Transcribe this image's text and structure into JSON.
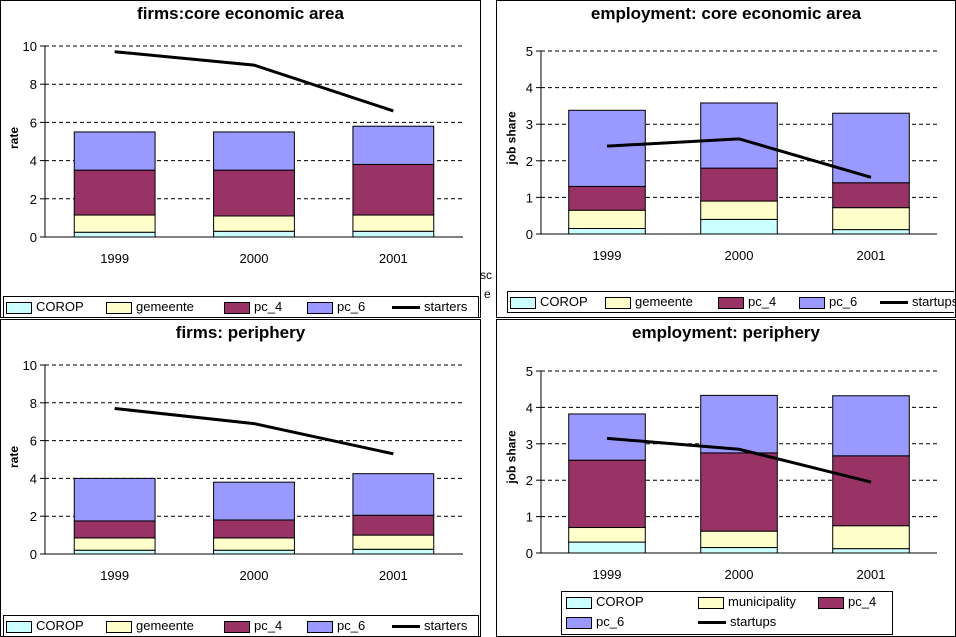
{
  "colors": {
    "corop": "#ccffff",
    "gemeente": "#ffffcc",
    "pc_4": "#993366",
    "pc_6": "#9999ff",
    "line": "#000000",
    "grid": "#000000"
  },
  "stray_text": {
    "a": "sc",
    "b": "e"
  },
  "chart_data": [
    {
      "type": "bar",
      "stacked": true,
      "title": "firms:core economic area",
      "ylabel": "rate",
      "ylim": [
        0,
        10
      ],
      "yticks": [
        "0",
        "2",
        "4",
        "6",
        "8",
        "10"
      ],
      "categories": [
        "1999",
        "2000",
        "2001"
      ],
      "series": [
        {
          "name": "COROP",
          "values": [
            0.25,
            0.3,
            0.3
          ]
        },
        {
          "name": "gemeente",
          "values": [
            0.9,
            0.8,
            0.85
          ]
        },
        {
          "name": "pc_4",
          "values": [
            2.35,
            2.4,
            2.65
          ]
        },
        {
          "name": "pc_6",
          "values": [
            2.0,
            2.0,
            2.0
          ]
        }
      ],
      "line": {
        "name": "starters",
        "values": [
          9.7,
          9.0,
          6.6
        ]
      },
      "grid": "dashed-horizontal",
      "legend": "bottom"
    },
    {
      "type": "bar",
      "stacked": true,
      "title": "employment: core economic area",
      "ylabel": "job share",
      "ylim": [
        0,
        5
      ],
      "yticks": [
        "0",
        "1",
        "2",
        "3",
        "4",
        "5"
      ],
      "categories": [
        "1999",
        "2000",
        "2001"
      ],
      "series": [
        {
          "name": "COROP",
          "values": [
            0.15,
            0.4,
            0.12
          ]
        },
        {
          "name": "gemeente",
          "values": [
            0.5,
            0.5,
            0.6
          ]
        },
        {
          "name": "pc_4",
          "values": [
            0.65,
            0.9,
            0.68
          ]
        },
        {
          "name": "pc_6",
          "values": [
            2.08,
            1.78,
            1.9
          ]
        }
      ],
      "line": {
        "name": "startups",
        "values": [
          2.4,
          2.6,
          1.55
        ]
      },
      "grid": "dashed-horizontal",
      "legend": "bottom"
    },
    {
      "type": "bar",
      "stacked": true,
      "title": "firms: periphery",
      "ylabel": "rate",
      "ylim": [
        0,
        10
      ],
      "yticks": [
        "0",
        "2",
        "4",
        "6",
        "8",
        "10"
      ],
      "categories": [
        "1999",
        "2000",
        "2001"
      ],
      "series": [
        {
          "name": "COROP",
          "values": [
            0.2,
            0.2,
            0.25
          ]
        },
        {
          "name": "gemeente",
          "values": [
            0.65,
            0.65,
            0.75
          ]
        },
        {
          "name": "pc_4",
          "values": [
            0.9,
            0.95,
            1.05
          ]
        },
        {
          "name": "pc_6",
          "values": [
            2.25,
            2.0,
            2.2
          ]
        }
      ],
      "line": {
        "name": "starters",
        "values": [
          7.7,
          6.9,
          5.3
        ]
      },
      "grid": "dashed-horizontal",
      "legend": "bottom"
    },
    {
      "type": "bar",
      "stacked": true,
      "title": "employment: periphery",
      "ylabel": "job share",
      "ylim": [
        0,
        5
      ],
      "yticks": [
        "0",
        "1",
        "2",
        "3",
        "4",
        "5"
      ],
      "categories": [
        "1999",
        "2000",
        "2001"
      ],
      "series": [
        {
          "name": "COROP",
          "values": [
            0.3,
            0.15,
            0.12
          ]
        },
        {
          "name": "municipality",
          "values": [
            0.4,
            0.45,
            0.63
          ]
        },
        {
          "name": "pc_4",
          "values": [
            1.85,
            2.15,
            1.92
          ]
        },
        {
          "name": "pc_6",
          "values": [
            1.27,
            1.58,
            1.65
          ]
        }
      ],
      "line": {
        "name": "startups",
        "values": [
          3.15,
          2.85,
          1.95
        ]
      },
      "grid": "dashed-horizontal",
      "legend": "bottom"
    }
  ]
}
